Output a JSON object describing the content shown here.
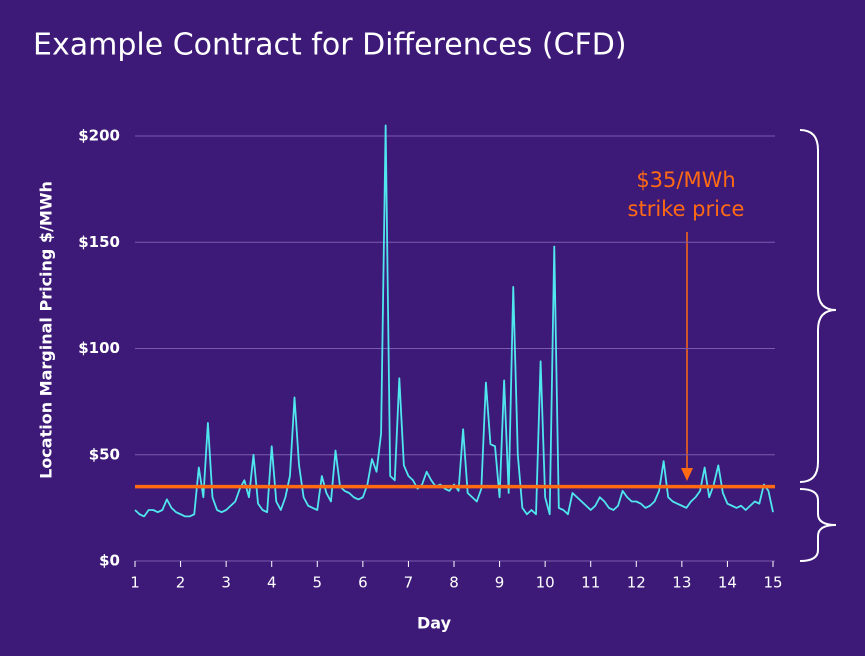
{
  "chart_data": {
    "type": "line",
    "title": "Example Contract for Differences (CFD)",
    "xlabel": "Day",
    "ylabel": "Location Marginal Pricing $/MWh",
    "color": "#4fe6ee",
    "x": [
      1,
      1.1,
      1.2,
      1.3,
      1.4,
      1.5,
      1.6,
      1.7,
      1.8,
      1.9,
      2,
      2.1,
      2.2,
      2.3,
      2.4,
      2.5,
      2.6,
      2.7,
      2.8,
      2.9,
      3,
      3.1,
      3.2,
      3.3,
      3.4,
      3.5,
      3.6,
      3.7,
      3.8,
      3.9,
      4,
      4.1,
      4.2,
      4.3,
      4.4,
      4.5,
      4.6,
      4.7,
      4.8,
      4.9,
      5,
      5.1,
      5.2,
      5.3,
      5.4,
      5.5,
      5.6,
      5.7,
      5.8,
      5.9,
      6,
      6.1,
      6.2,
      6.3,
      6.4,
      6.5,
      6.6,
      6.7,
      6.8,
      6.9,
      7,
      7.1,
      7.2,
      7.3,
      7.4,
      7.5,
      7.6,
      7.7,
      7.8,
      7.9,
      8,
      8.1,
      8.2,
      8.3,
      8.4,
      8.5,
      8.6,
      8.7,
      8.8,
      8.9,
      9,
      9.1,
      9.2,
      9.3,
      9.4,
      9.5,
      9.6,
      9.7,
      9.8,
      9.9,
      10,
      10.1,
      10.2,
      10.3,
      10.4,
      10.5,
      10.6,
      10.7,
      10.8,
      10.9,
      11,
      11.1,
      11.2,
      11.3,
      11.4,
      11.5,
      11.6,
      11.7,
      11.8,
      11.9,
      12,
      12.1,
      12.2,
      12.3,
      12.4,
      12.5,
      12.6,
      12.7,
      12.8,
      12.9,
      13,
      13.1,
      13.2,
      13.3,
      13.4,
      13.5,
      13.6,
      13.7,
      13.8,
      13.9,
      14,
      14.1,
      14.2,
      14.3,
      14.4,
      14.5,
      14.6,
      14.7,
      14.8,
      14.9,
      15
    ],
    "values": [
      24,
      22,
      21,
      24,
      24,
      23,
      24,
      29,
      25,
      23,
      22,
      21,
      21,
      22,
      44,
      30,
      65,
      30,
      24,
      23,
      24,
      26,
      28,
      34,
      38,
      30,
      50,
      27,
      24,
      23,
      54,
      28,
      24,
      30,
      40,
      77,
      45,
      30,
      26,
      25,
      24,
      40,
      32,
      28,
      52,
      35,
      33,
      32,
      30,
      29,
      30,
      36,
      48,
      42,
      60,
      205,
      40,
      38,
      86,
      45,
      40,
      38,
      34,
      36,
      42,
      38,
      35,
      36,
      34,
      33,
      36,
      33,
      62,
      32,
      30,
      28,
      34,
      84,
      55,
      54,
      30,
      85,
      32,
      129,
      50,
      25,
      22,
      24,
      22,
      94,
      30,
      22,
      148,
      25,
      24,
      22,
      32,
      30,
      28,
      26,
      24,
      26,
      30,
      28,
      25,
      24,
      26,
      33,
      30,
      28,
      28,
      27,
      25,
      26,
      28,
      33,
      47,
      30,
      28,
      27,
      26,
      25,
      28,
      30,
      33,
      44,
      30,
      36,
      45,
      32,
      27,
      26,
      25,
      26,
      24,
      26,
      28,
      27,
      36,
      33,
      23
    ],
    "strike_price": 35,
    "strike_color": "#ff6a13",
    "annotation": [
      "$35/MWh",
      "strike price"
    ],
    "xlim": [
      1,
      15
    ],
    "xticks": [
      1,
      2,
      3,
      4,
      5,
      6,
      7,
      8,
      9,
      10,
      11,
      12,
      13,
      14,
      15
    ],
    "ylim": [
      0,
      200
    ],
    "yticks": [
      {
        "value": 0,
        "label": "$0"
      },
      {
        "value": 50,
        "label": "$50"
      },
      {
        "value": 100,
        "label": "$100"
      },
      {
        "value": 150,
        "label": "$150"
      },
      {
        "value": 200,
        "label": "$200"
      }
    ],
    "grid": true
  }
}
